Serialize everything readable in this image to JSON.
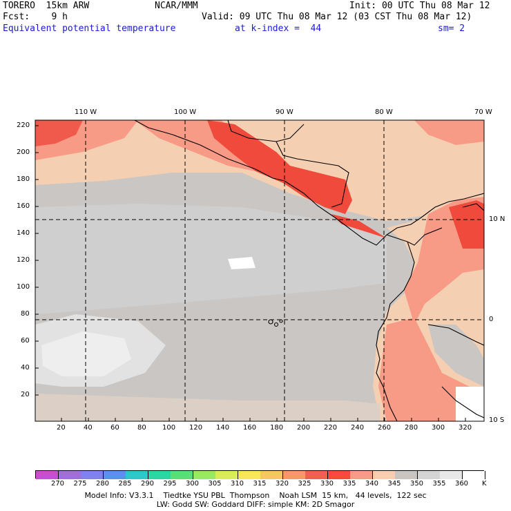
{
  "header": {
    "model": "TORERO  15km ARW",
    "center": "NCAR/MMM",
    "init": "Init: 00 UTC Thu 08 Mar 12",
    "fcst": "Fcst:    9 h",
    "valid": "Valid: 09 UTC Thu 08 Mar 12 (03 CST Thu 08 Mar 12)",
    "field": "Equivalent potential temperature",
    "level": "at k-index =  44",
    "smoothing": "sm= 2"
  },
  "map": {
    "x_ticks": [
      "20",
      "40",
      "60",
      "80",
      "100",
      "120",
      "140",
      "160",
      "180",
      "200",
      "220",
      "240",
      "260",
      "280",
      "300",
      "320"
    ],
    "y_ticks": [
      "20",
      "40",
      "60",
      "80",
      "100",
      "120",
      "140",
      "160",
      "180",
      "200",
      "220"
    ],
    "lon_labels": [
      "110 W",
      "100 W",
      "90 W",
      "80 W",
      "70 W"
    ],
    "lat_labels": [
      "10 N",
      "0",
      "10 S"
    ]
  },
  "legend": {
    "unit": "K",
    "labels": [
      "270",
      "275",
      "280",
      "285",
      "290",
      "295",
      "300",
      "305",
      "310",
      "315",
      "320",
      "325",
      "330",
      "335",
      "340",
      "345",
      "350",
      "355",
      "360"
    ],
    "colors": [
      "#c84ed0",
      "#a070d8",
      "#8080ee",
      "#5a90ee",
      "#2ec8c8",
      "#28d8a0",
      "#58e078",
      "#98e860",
      "#d8ec58",
      "#f8e858",
      "#f8c860",
      "#f8986a",
      "#f06050",
      "#f84a3c",
      "#f89a88",
      "#f8cdb0",
      "#c8c4c2",
      "#d4d4d4",
      "#e8e8e8",
      "#ffffff"
    ]
  },
  "footer": {
    "line1": "Model Info: V3.3.1    Tiedtke YSU PBL  Thompson    Noah LSM  15 km,   44 levels,  122 sec",
    "line2": "LW: Godd SW: Goddard DIFF: simple KM: 2D Smagor"
  }
}
